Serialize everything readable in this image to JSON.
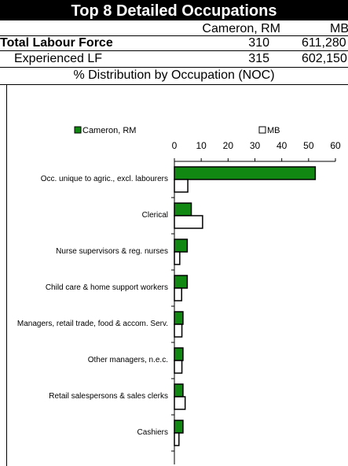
{
  "header": {
    "title": "Top 8 Detailed Occupations"
  },
  "table": {
    "columns": [
      "Cameron, RM",
      "MB"
    ],
    "rows": [
      [
        "Total Labour Force",
        "310",
        "611,280"
      ],
      [
        "Experienced LF",
        "315",
        "602,150"
      ]
    ]
  },
  "section": "% Distribution by Occupation (NOC)",
  "chart_data": {
    "type": "bar",
    "orientation": "horizontal",
    "legend": "top",
    "categories": [
      "Occ. unique to agric., excl. labourers",
      "Clerical",
      "Nurse supervisors & reg. nurses",
      "Child care & home support workers",
      "Managers, retail trade, food & accom. Serv.",
      "Other managers, n.e.c.",
      "Retail salespersons & sales clerks",
      "Cashiers"
    ],
    "series": [
      {
        "name": "Cameron, RM",
        "color": "#118811",
        "values": [
          52.5,
          6.3,
          4.8,
          4.8,
          3.2,
          3.2,
          3.2,
          3.2
        ]
      },
      {
        "name": "MB",
        "color": "#ffffff",
        "values": [
          5,
          10.5,
          2,
          2.7,
          2.8,
          2.8,
          4,
          1.7
        ]
      }
    ],
    "xlim": [
      0,
      60
    ],
    "xticks": [
      0,
      10,
      20,
      30,
      40,
      50,
      60
    ]
  }
}
